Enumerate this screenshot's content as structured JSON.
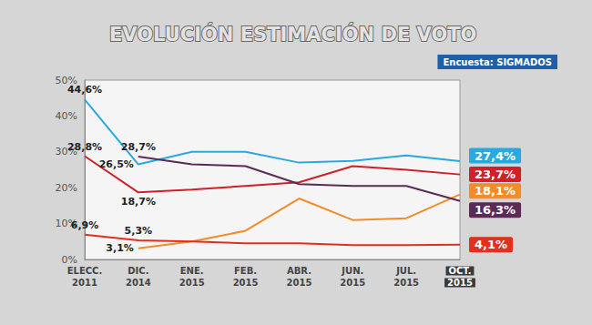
{
  "chart_data": {
    "type": "line",
    "title": "EVOLUCIÓN ESTIMACIÓN DE VOTO",
    "subtitle": "Encuesta: SIGMADOS",
    "categories": [
      "ELECC.\n2011",
      "DIC.\n2014",
      "ENE.\n2015",
      "FEB.\n2015",
      "ABR.\n2015",
      "JUN.\n2015",
      "JUL.\n2015",
      "OCT.\n2015"
    ],
    "series": [
      {
        "color": "#2aa9e0",
        "values": [
          44.6,
          26.5,
          30.0,
          30.0,
          27.0,
          27.5,
          29.0,
          27.4
        ],
        "value_labels": [
          "44,6%",
          "26,5%",
          null,
          null,
          null,
          null,
          null,
          "27,4%"
        ]
      },
      {
        "color": "#d0202a",
        "values": [
          28.8,
          18.7,
          19.5,
          20.5,
          21.5,
          26.0,
          25.0,
          23.7
        ],
        "value_labels": [
          "28,8%",
          "18,7%",
          null,
          null,
          null,
          null,
          null,
          "23,7%"
        ]
      },
      {
        "color": "#f28c28",
        "values": [
          null,
          3.1,
          5.0,
          8.0,
          17.0,
          11.0,
          11.5,
          18.1
        ],
        "value_labels": [
          null,
          "3,1%",
          null,
          null,
          null,
          null,
          null,
          "18,1%"
        ]
      },
      {
        "color": "#5b2a55",
        "values": [
          null,
          28.7,
          26.5,
          26.0,
          21.0,
          20.5,
          20.5,
          16.3
        ],
        "value_labels": [
          null,
          "28,7%",
          null,
          null,
          null,
          null,
          null,
          "16,3%"
        ]
      },
      {
        "color": "#e2301e",
        "values": [
          6.9,
          5.3,
          5.0,
          4.5,
          4.5,
          4.0,
          4.0,
          4.1
        ],
        "value_labels": [
          "6,9%",
          "5,3%",
          null,
          null,
          null,
          null,
          null,
          "4,1%"
        ]
      }
    ],
    "ylim": [
      0,
      50
    ],
    "yticks": [
      {
        "value": 0,
        "label": "0%"
      },
      {
        "value": 10,
        "label": "10%"
      },
      {
        "value": 20,
        "label": "20%"
      },
      {
        "value": 30,
        "label": "30%"
      },
      {
        "value": 40,
        "label": "40%"
      },
      {
        "value": 50,
        "label": "50%"
      }
    ],
    "grid": false,
    "data_labels": true
  }
}
